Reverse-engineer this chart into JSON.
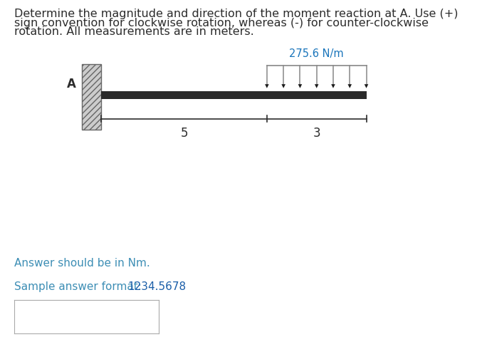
{
  "title_text_part1": "Determine the magnitude and direction of the moment reaction at A. Use (+)",
  "title_text_part2": "sign convention for clockwise rotation, whereas (-) for counter-clockwise",
  "title_text_part3": "rotation. All measurements are in meters.",
  "title_fontsize": 11.5,
  "title_color": "#2c2c2c",
  "load_label": "275.6 N/m",
  "load_label_color": "#1a75bb",
  "dim_label_5": "5",
  "dim_label_3": "3",
  "dim_label_color": "#2c2c2c",
  "point_label": "A",
  "point_label_color": "#2c2c2c",
  "answer_line1_part1": "Answer should be in Nm.",
  "answer_line1_color": "#3d8eb5",
  "answer_line2_part1": "Sample answer format: ",
  "answer_line2_part2": "1234.5678",
  "answer_line2_color1": "#3d8eb5",
  "answer_line2_color2": "#1a5ea8",
  "beam_color": "#2a2a2a",
  "wall_face_color": "#cccccc",
  "wall_edge_color": "#666666",
  "wall_hatch_color": "#666666",
  "arrow_body_color": "#888888",
  "arrow_head_color": "#1a1a1a",
  "dim_line_color": "#2c2c2c",
  "load_top_line_color": "#888888",
  "background_color": "#ffffff",
  "box_edge_color": "#aaaaaa"
}
